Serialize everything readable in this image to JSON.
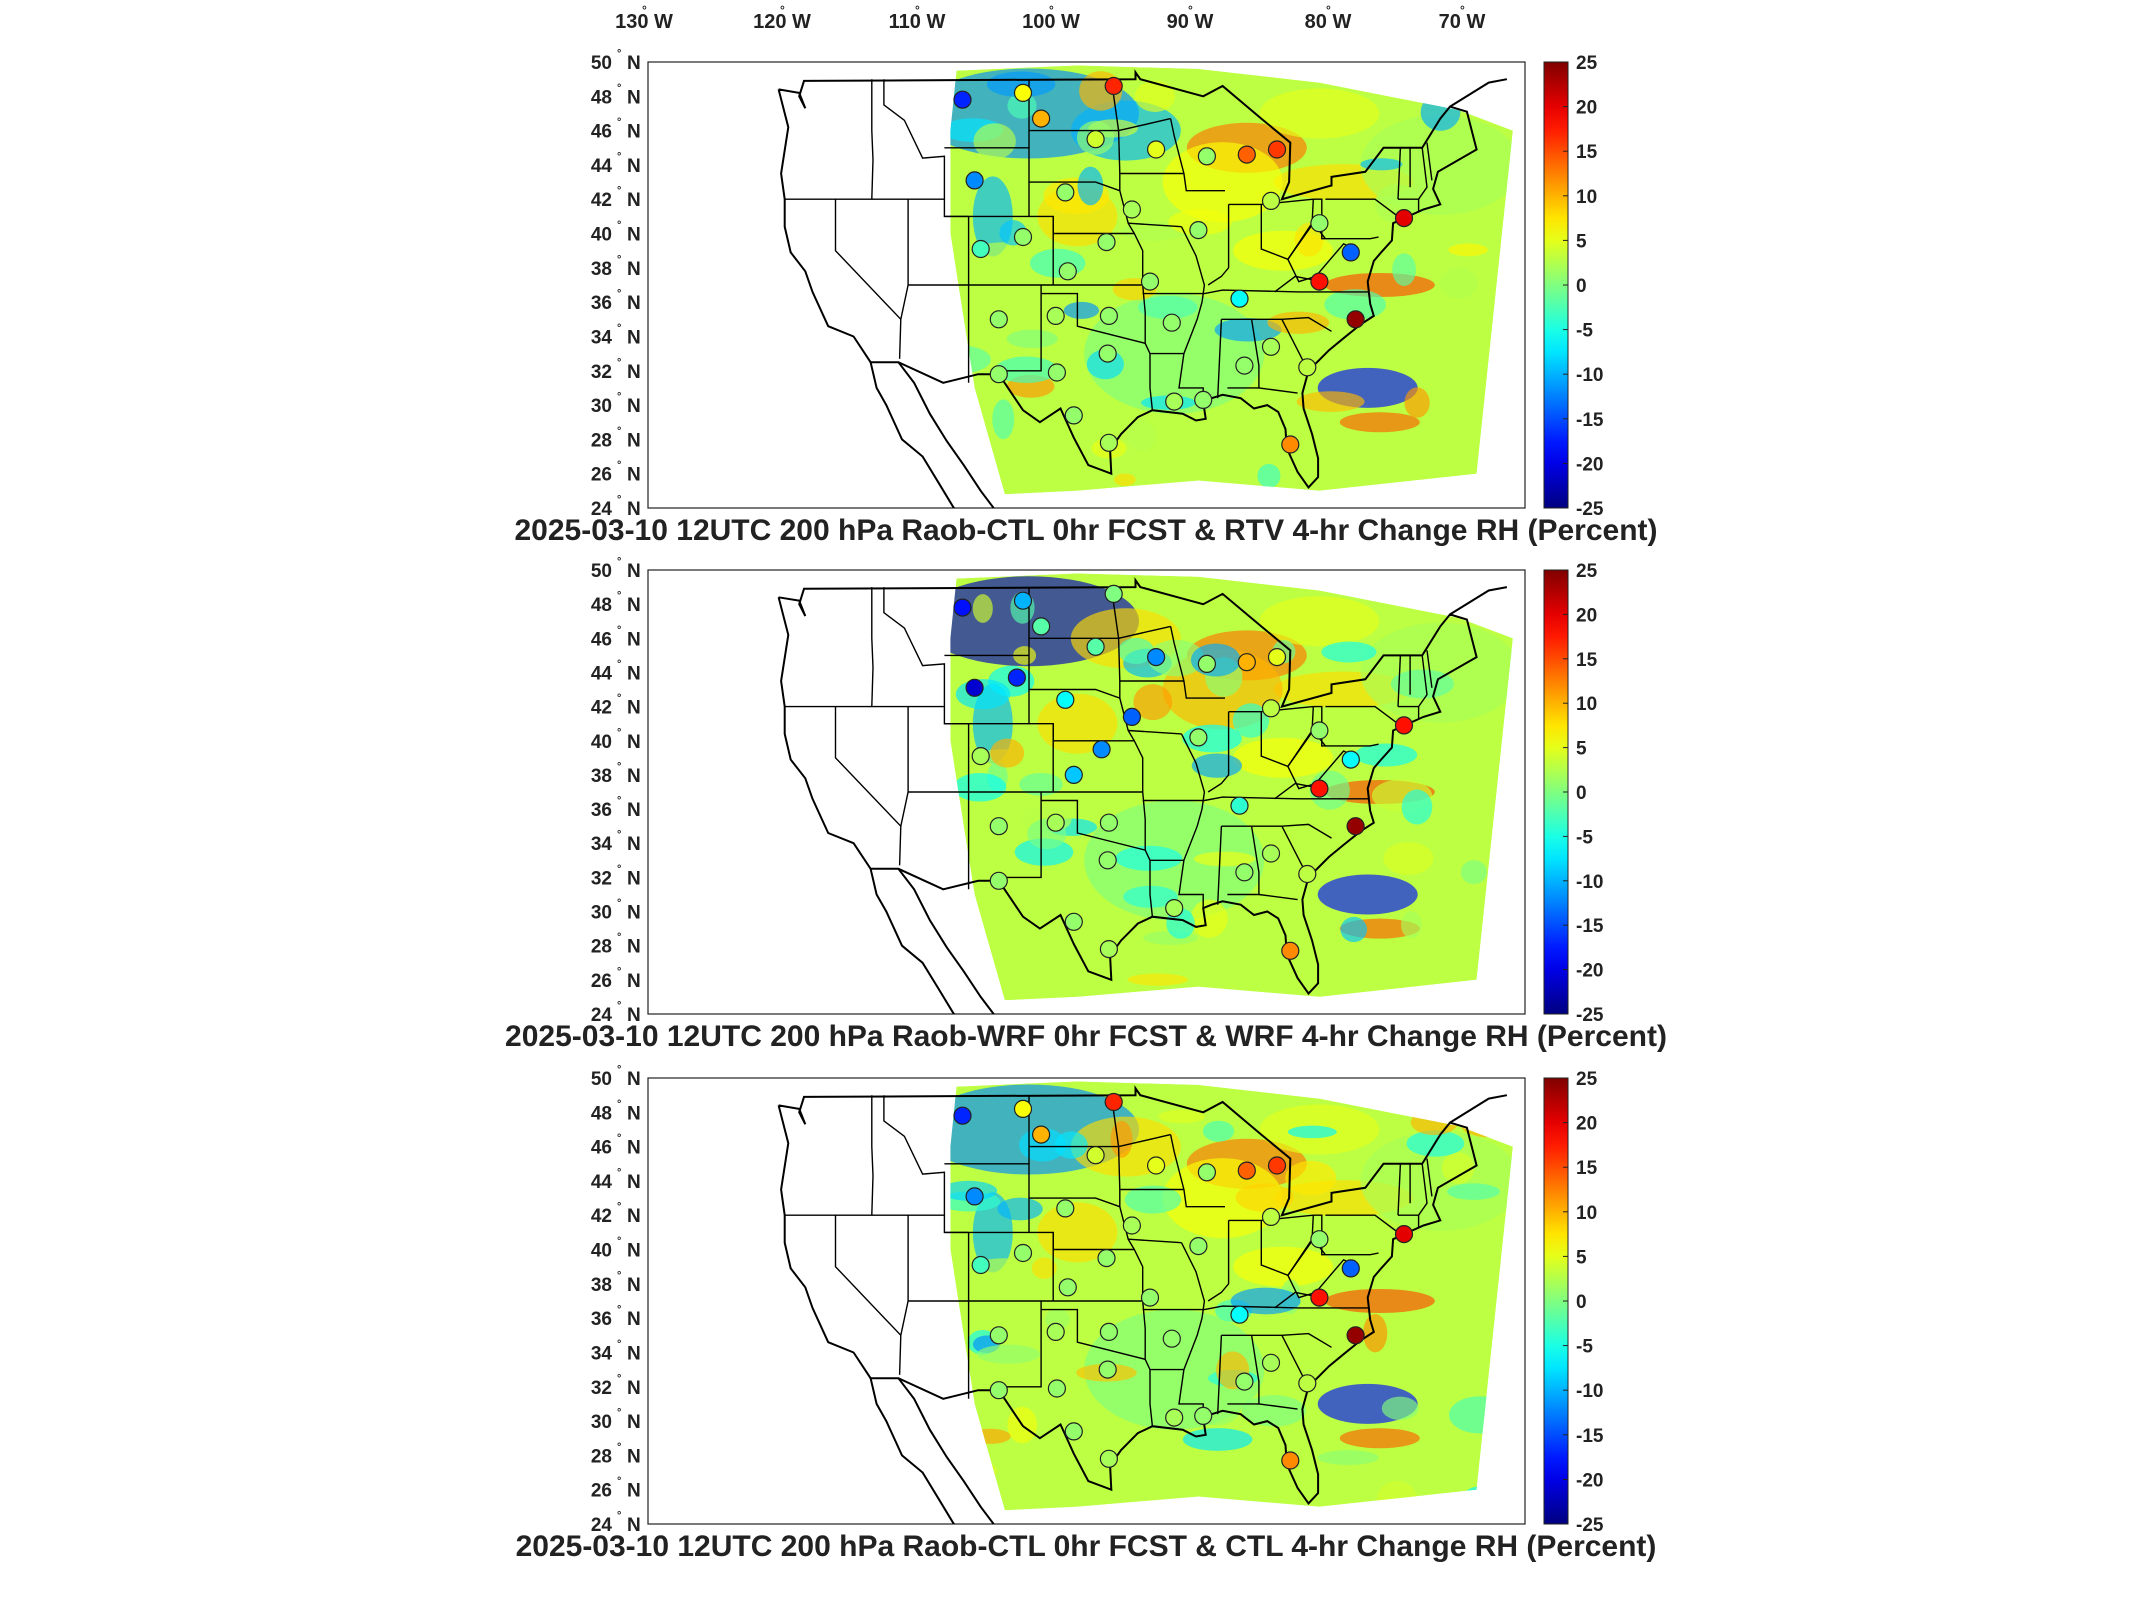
{
  "lon_labels": [
    "130",
    "120",
    "110",
    "100",
    "90",
    "80",
    "70"
  ],
  "lon_suffix": "W",
  "lat_labels": [
    "50",
    "48",
    "46",
    "44",
    "42",
    "40",
    "38",
    "36",
    "34",
    "32",
    "30",
    "28",
    "26",
    "24"
  ],
  "lat_suffix": "N",
  "degree_symbol": "°",
  "colorbar": {
    "ticks": [
      "25",
      "20",
      "15",
      "10",
      "5",
      "0",
      "-5",
      "-10",
      "-15",
      "-20",
      "-25"
    ],
    "range": [
      -25,
      25
    ],
    "colormap": "jet",
    "colors": [
      "#00008f",
      "#0000ff",
      "#0080ff",
      "#00ffff",
      "#80ff80",
      "#ffff00",
      "#ff8000",
      "#ff0000",
      "#800000"
    ]
  },
  "panels": [
    {
      "title": "2025-03-10 12UTC 200 hPa Raob-CTL 0hr FCST & RTV 4-hr Change RH (Percent)",
      "station_values": [
        {
          "lon": -109.5,
          "lat": 47.8,
          "v": -17
        },
        {
          "lon": -104.5,
          "lat": 48.2,
          "v": 6
        },
        {
          "lon": -97.0,
          "lat": 48.6,
          "v": 17
        },
        {
          "lon": -103.0,
          "lat": 46.7,
          "v": 10
        },
        {
          "lon": -98.5,
          "lat": 45.5,
          "v": 4
        },
        {
          "lon": -93.5,
          "lat": 44.9,
          "v": 5
        },
        {
          "lon": -86.0,
          "lat": 44.6,
          "v": 14
        },
        {
          "lon": -83.5,
          "lat": 44.9,
          "v": 16
        },
        {
          "lon": -108.5,
          "lat": 43.1,
          "v": -12
        },
        {
          "lon": -101.0,
          "lat": 42.4,
          "v": 1
        },
        {
          "lon": -95.5,
          "lat": 41.4,
          "v": 2
        },
        {
          "lon": -90.0,
          "lat": 40.2,
          "v": 1
        },
        {
          "lon": -84.0,
          "lat": 41.9,
          "v": 3
        },
        {
          "lon": -80.0,
          "lat": 40.6,
          "v": 1
        },
        {
          "lon": -73.0,
          "lat": 40.9,
          "v": 20
        },
        {
          "lon": -77.4,
          "lat": 38.9,
          "v": -14
        },
        {
          "lon": -80.0,
          "lat": 37.2,
          "v": 18
        },
        {
          "lon": -77.0,
          "lat": 35.0,
          "v": 24
        },
        {
          "lon": -81.0,
          "lat": 32.2,
          "v": 3
        },
        {
          "lon": -82.4,
          "lat": 27.7,
          "v": 12
        },
        {
          "lon": -106.5,
          "lat": 35.0,
          "v": 1
        },
        {
          "lon": -101.8,
          "lat": 35.2,
          "v": 2
        },
        {
          "lon": -97.4,
          "lat": 35.2,
          "v": 1
        },
        {
          "lon": -92.2,
          "lat": 34.8,
          "v": 1
        },
        {
          "lon": -86.6,
          "lat": 36.2,
          "v": -6
        },
        {
          "lon": -84.0,
          "lat": 33.4,
          "v": 2
        },
        {
          "lon": -86.2,
          "lat": 32.3,
          "v": 1
        },
        {
          "lon": -97.5,
          "lat": 33.0,
          "v": 1
        },
        {
          "lon": -101.7,
          "lat": 31.9,
          "v": 1
        },
        {
          "lon": -106.5,
          "lat": 31.8,
          "v": 1
        },
        {
          "lon": -97.4,
          "lat": 27.8,
          "v": 2
        },
        {
          "lon": -100.3,
          "lat": 29.4,
          "v": 1
        },
        {
          "lon": -92.0,
          "lat": 30.2,
          "v": 2
        },
        {
          "lon": -89.6,
          "lat": 30.3,
          "v": 1
        },
        {
          "lon": -94.0,
          "lat": 37.2,
          "v": 1
        },
        {
          "lon": -100.8,
          "lat": 37.8,
          "v": 1
        },
        {
          "lon": -108.0,
          "lat": 39.1,
          "v": -3
        },
        {
          "lon": -104.5,
          "lat": 39.8,
          "v": 1
        },
        {
          "lon": -97.6,
          "lat": 39.5,
          "v": 1
        },
        {
          "lon": -89.3,
          "lat": 44.5,
          "v": 1
        }
      ]
    },
    {
      "title": "2025-03-10 12UTC 200 hPa Raob-WRF 0hr FCST & WRF 4-hr Change RH (Percent)",
      "station_values": [
        {
          "lon": -109.5,
          "lat": 47.8,
          "v": -18
        },
        {
          "lon": -104.5,
          "lat": 48.2,
          "v": -10
        },
        {
          "lon": -97.0,
          "lat": 48.6,
          "v": 0
        },
        {
          "lon": -103.0,
          "lat": 46.7,
          "v": -2
        },
        {
          "lon": -98.5,
          "lat": 45.5,
          "v": -2
        },
        {
          "lon": -93.5,
          "lat": 44.9,
          "v": -12
        },
        {
          "lon": -86.0,
          "lat": 44.6,
          "v": 10
        },
        {
          "lon": -83.5,
          "lat": 44.9,
          "v": 5
        },
        {
          "lon": -108.5,
          "lat": 43.1,
          "v": -21
        },
        {
          "lon": -105.0,
          "lat": 43.7,
          "v": -17
        },
        {
          "lon": -101.0,
          "lat": 42.4,
          "v": -6
        },
        {
          "lon": -95.5,
          "lat": 41.4,
          "v": -14
        },
        {
          "lon": -90.0,
          "lat": 40.2,
          "v": 1
        },
        {
          "lon": -84.0,
          "lat": 41.9,
          "v": 3
        },
        {
          "lon": -80.0,
          "lat": 40.6,
          "v": 1
        },
        {
          "lon": -73.0,
          "lat": 40.9,
          "v": 18
        },
        {
          "lon": -77.4,
          "lat": 38.9,
          "v": -6
        },
        {
          "lon": -80.0,
          "lat": 37.2,
          "v": 18
        },
        {
          "lon": -77.0,
          "lat": 35.0,
          "v": 24
        },
        {
          "lon": -81.0,
          "lat": 32.2,
          "v": 3
        },
        {
          "lon": -82.4,
          "lat": 27.7,
          "v": 12
        },
        {
          "lon": -100.3,
          "lat": 38.0,
          "v": -9
        },
        {
          "lon": -98.0,
          "lat": 39.5,
          "v": -12
        },
        {
          "lon": -106.5,
          "lat": 35.0,
          "v": 1
        },
        {
          "lon": -101.8,
          "lat": 35.2,
          "v": 2
        },
        {
          "lon": -97.4,
          "lat": 35.2,
          "v": 1
        },
        {
          "lon": -86.6,
          "lat": 36.2,
          "v": -4
        },
        {
          "lon": -84.0,
          "lat": 33.4,
          "v": 2
        },
        {
          "lon": -86.2,
          "lat": 32.3,
          "v": 1
        },
        {
          "lon": -97.5,
          "lat": 33.0,
          "v": 1
        },
        {
          "lon": -106.5,
          "lat": 31.8,
          "v": 1
        },
        {
          "lon": -97.4,
          "lat": 27.8,
          "v": 2
        },
        {
          "lon": -100.3,
          "lat": 29.4,
          "v": 1
        },
        {
          "lon": -92.0,
          "lat": 30.2,
          "v": 2
        },
        {
          "lon": -108.0,
          "lat": 39.1,
          "v": 2
        },
        {
          "lon": -89.3,
          "lat": 44.5,
          "v": 1
        }
      ]
    },
    {
      "title": "2025-03-10 12UTC 200 hPa Raob-CTL 0hr FCST & CTL 4-hr Change RH (Percent)",
      "station_values": [
        {
          "lon": -109.5,
          "lat": 47.8,
          "v": -17
        },
        {
          "lon": -104.5,
          "lat": 48.2,
          "v": 6
        },
        {
          "lon": -97.0,
          "lat": 48.6,
          "v": 17
        },
        {
          "lon": -103.0,
          "lat": 46.7,
          "v": 10
        },
        {
          "lon": -98.5,
          "lat": 45.5,
          "v": 4
        },
        {
          "lon": -93.5,
          "lat": 44.9,
          "v": 5
        },
        {
          "lon": -86.0,
          "lat": 44.6,
          "v": 14
        },
        {
          "lon": -83.5,
          "lat": 44.9,
          "v": 16
        },
        {
          "lon": -108.5,
          "lat": 43.1,
          "v": -12
        },
        {
          "lon": -101.0,
          "lat": 42.4,
          "v": 1
        },
        {
          "lon": -95.5,
          "lat": 41.4,
          "v": 2
        },
        {
          "lon": -90.0,
          "lat": 40.2,
          "v": 1
        },
        {
          "lon": -84.0,
          "lat": 41.9,
          "v": 3
        },
        {
          "lon": -80.0,
          "lat": 40.6,
          "v": 1
        },
        {
          "lon": -73.0,
          "lat": 40.9,
          "v": 20
        },
        {
          "lon": -77.4,
          "lat": 38.9,
          "v": -14
        },
        {
          "lon": -80.0,
          "lat": 37.2,
          "v": 18
        },
        {
          "lon": -77.0,
          "lat": 35.0,
          "v": 24
        },
        {
          "lon": -81.0,
          "lat": 32.2,
          "v": 3
        },
        {
          "lon": -82.4,
          "lat": 27.7,
          "v": 12
        },
        {
          "lon": -106.5,
          "lat": 35.0,
          "v": 1
        },
        {
          "lon": -101.8,
          "lat": 35.2,
          "v": 2
        },
        {
          "lon": -97.4,
          "lat": 35.2,
          "v": 1
        },
        {
          "lon": -92.2,
          "lat": 34.8,
          "v": 1
        },
        {
          "lon": -86.6,
          "lat": 36.2,
          "v": -6
        },
        {
          "lon": -84.0,
          "lat": 33.4,
          "v": 2
        },
        {
          "lon": -86.2,
          "lat": 32.3,
          "v": 1
        },
        {
          "lon": -97.5,
          "lat": 33.0,
          "v": 1
        },
        {
          "lon": -101.7,
          "lat": 31.9,
          "v": 1
        },
        {
          "lon": -106.5,
          "lat": 31.8,
          "v": 1
        },
        {
          "lon": -97.4,
          "lat": 27.8,
          "v": 2
        },
        {
          "lon": -100.3,
          "lat": 29.4,
          "v": 1
        },
        {
          "lon": -92.0,
          "lat": 30.2,
          "v": 2
        },
        {
          "lon": -89.6,
          "lat": 30.3,
          "v": 1
        },
        {
          "lon": -94.0,
          "lat": 37.2,
          "v": 1
        },
        {
          "lon": -100.8,
          "lat": 37.8,
          "v": 1
        },
        {
          "lon": -108.0,
          "lat": 39.1,
          "v": -3
        },
        {
          "lon": -104.5,
          "lat": 39.8,
          "v": 1
        },
        {
          "lon": -97.6,
          "lat": 39.5,
          "v": 1
        },
        {
          "lon": -89.3,
          "lat": 44.5,
          "v": 1
        }
      ]
    }
  ]
}
